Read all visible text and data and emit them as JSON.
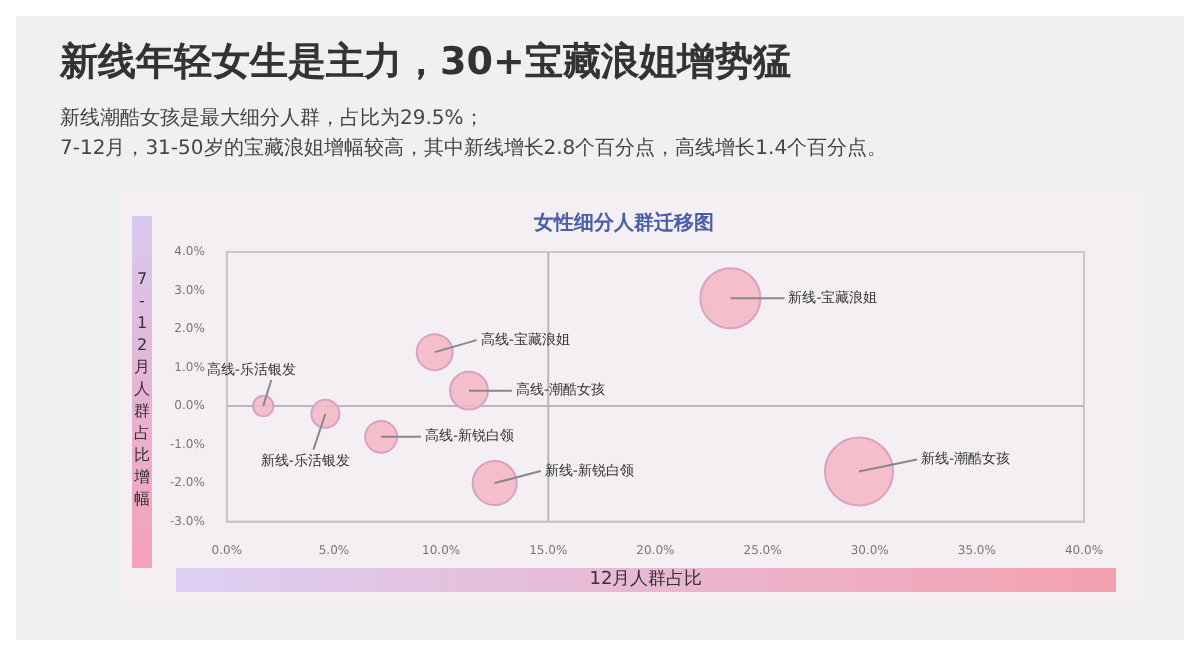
{
  "chart_data": {
    "type": "bubble",
    "title": "新线年轻女生是主力，30+宝藏浪姐增势猛",
    "subtitle": "新线潮酷女孩是最大细分人群，占比为29.5%；\n7-12月，31-50岁的宝藏浪姐增幅较高，其中新线增长2.8个百分点，高线增长1.4个百分点。",
    "xlabel": "12月人群占比",
    "ylabel": "7-12月人群占比增幅",
    "annotations": [
      "女性细分人群迁移图",
      {
        "text": "高线-乐活银发",
        "x": 1.7,
        "y": 0
      },
      {
        "text": "新线-乐活银发",
        "x": 4.6,
        "y": -0.2
      },
      {
        "text": "高线-新锐白领",
        "x": 7.2,
        "y": -0.8
      },
      {
        "text": "高线-宝藏浪姐",
        "x": 9.7,
        "y": 1.4
      },
      {
        "text": "高线-潮酷女孩",
        "x": 11.3,
        "y": 0.4
      },
      {
        "text": "新线-新锐白领",
        "x": 12.5,
        "y": -2.0
      },
      {
        "text": "新线-宝藏浪姐",
        "x": 23.5,
        "y": 2.8
      },
      {
        "text": "新线-潮酷女孩",
        "x": 29.5,
        "y": -1.7
      }
    ],
    "series": [
      {
        "color": "#f4b8c4",
        "x": [
          1.7,
          4.6,
          7.2,
          9.7,
          11.3,
          12.5,
          23.5,
          29.5
        ],
        "values": [
          0,
          -0.2,
          -0.8,
          1.4,
          0.4,
          -2.0,
          2.8,
          -1.7
        ],
        "sizes": [
          0.09,
          0.17,
          0.22,
          0.28,
          0.31,
          0.42,
          0.78,
          1
        ]
      }
    ],
    "xlim": [
      0,
      40
    ],
    "xticks": [
      {
        "value": 0,
        "label": "0.0%"
      },
      {
        "value": 5,
        "label": "5.0%"
      },
      {
        "value": 10,
        "label": "10.0%"
      },
      {
        "value": 15,
        "label": "15.0%"
      },
      {
        "value": 20,
        "label": "20.0%"
      },
      {
        "value": 25,
        "label": "25.0%"
      },
      {
        "value": 30,
        "label": "30.0%"
      },
      {
        "value": 35,
        "label": "35.0%"
      },
      {
        "value": 40,
        "label": "40.0%"
      }
    ],
    "ylim": [
      -3,
      4
    ],
    "yticks": [
      {
        "value": -3,
        "label": "-3.0%"
      },
      {
        "value": -2,
        "label": "-2.0%"
      },
      {
        "value": -1,
        "label": "-1.0%"
      },
      {
        "value": 0,
        "label": "0.0%"
      },
      {
        "value": 1,
        "label": "1.0%"
      },
      {
        "value": 2,
        "label": "2.0%"
      },
      {
        "value": 3,
        "label": "3.0%"
      },
      {
        "value": 4,
        "label": "4.0%"
      }
    ],
    "ref_lines": [
      {
        "axis": "x",
        "value": 15,
        "color": "#b8b8b8"
      },
      {
        "axis": "y",
        "value": 0,
        "color": "#b8b8b8"
      }
    ],
    "grid": false,
    "legend": false
  }
}
